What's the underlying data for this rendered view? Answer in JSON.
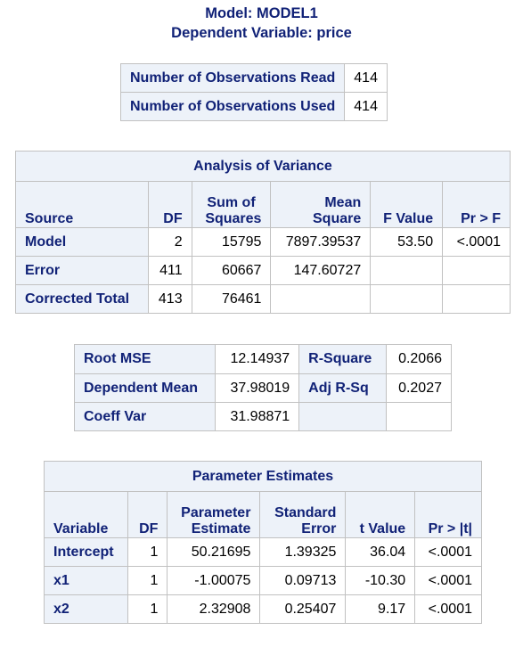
{
  "titles": {
    "model": "Model: MODEL1",
    "dependent": "Dependent Variable: price"
  },
  "observations": [
    {
      "label": "Number of Observations Read",
      "value": "414"
    },
    {
      "label": "Number of Observations Used",
      "value": "414"
    }
  ],
  "anova": {
    "caption": "Analysis of Variance",
    "headers": {
      "source": "Source",
      "df": "DF",
      "ss_line1": "Sum of",
      "ss_line2": "Squares",
      "ms_line1": "Mean",
      "ms_line2": "Square",
      "f": "F Value",
      "p": "Pr > F"
    },
    "rows": [
      {
        "source": "Model",
        "df": "2",
        "ss": "15795",
        "ms": "7897.39537",
        "f": "53.50",
        "p": "<.0001"
      },
      {
        "source": "Error",
        "df": "411",
        "ss": "60667",
        "ms": "147.60727",
        "f": "",
        "p": ""
      },
      {
        "source": "Corrected Total",
        "df": "413",
        "ss": "76461",
        "ms": "",
        "f": "",
        "p": ""
      }
    ]
  },
  "fit": {
    "rows": [
      {
        "label1": "Root MSE",
        "value1": "12.14937",
        "label2": "R-Square",
        "value2": "0.2066"
      },
      {
        "label1": "Dependent Mean",
        "value1": "37.98019",
        "label2": "Adj R-Sq",
        "value2": "0.2027"
      },
      {
        "label1": "Coeff Var",
        "value1": "31.98871",
        "label2": "",
        "value2": ""
      }
    ]
  },
  "params": {
    "caption": "Parameter Estimates",
    "headers": {
      "variable": "Variable",
      "df": "DF",
      "est_line1": "Parameter",
      "est_line2": "Estimate",
      "se_line1": "Standard",
      "se_line2": "Error",
      "t": "t Value",
      "p": "Pr > |t|"
    },
    "rows": [
      {
        "variable": "Intercept",
        "df": "1",
        "est": "50.21695",
        "se": "1.39325",
        "t": "36.04",
        "p": "<.0001"
      },
      {
        "variable": "x1",
        "df": "1",
        "est": "-1.00075",
        "se": "0.09713",
        "t": "-10.30",
        "p": "<.0001"
      },
      {
        "variable": "x2",
        "df": "1",
        "est": "2.32908",
        "se": "0.25407",
        "t": "9.17",
        "p": "<.0001"
      }
    ]
  }
}
